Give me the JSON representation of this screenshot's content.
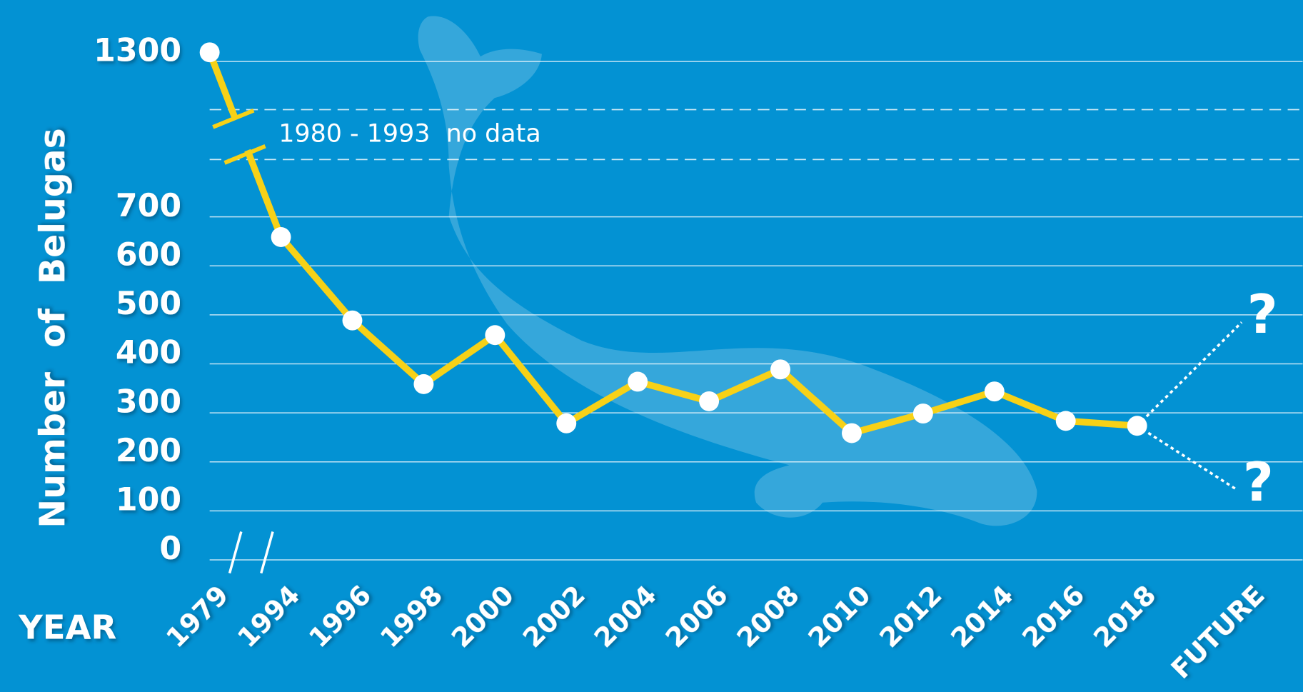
{
  "chart_data": {
    "type": "line",
    "y_label": "Number  of  Belugas",
    "x_label": "YEAR",
    "annotation": "1980 - 1993  no data",
    "future_labels": [
      "?",
      "?"
    ],
    "categories": [
      "1979",
      "1994",
      "1996",
      "1998",
      "2000",
      "2002",
      "2004",
      "2006",
      "2008",
      "2010",
      "2012",
      "2014",
      "2016",
      "2018",
      "FUTURE"
    ],
    "series": [
      {
        "color": "#f7d117",
        "values": [
          1300,
          640,
          470,
          340,
          440,
          260,
          345,
          305,
          370,
          240,
          280,
          325,
          265,
          255,
          null
        ]
      }
    ],
    "ylim": [
      0,
      1300
    ],
    "yticks": [
      0,
      100,
      200,
      300,
      400,
      500,
      600,
      700,
      1300
    ],
    "y_break": [
      700,
      1300
    ],
    "grid": true
  }
}
